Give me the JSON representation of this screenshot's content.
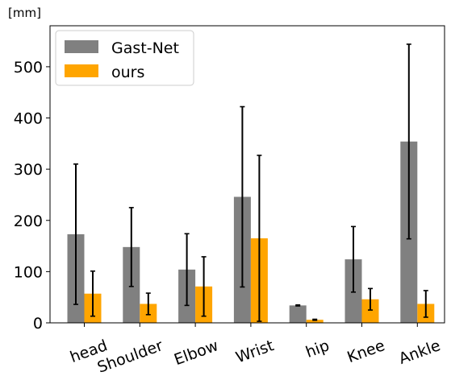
{
  "chart_data": {
    "type": "bar",
    "unit_label": "[mm]",
    "categories": [
      "head",
      "Shoulder",
      "Elbow",
      "Wrist",
      "hip",
      "Knee",
      "Ankle"
    ],
    "series": [
      {
        "name": "Gast-Net",
        "color": "#808080",
        "values": [
          173,
          148,
          104,
          246,
          34,
          124,
          354
        ],
        "error": [
          137,
          77,
          70,
          176,
          1,
          64,
          190
        ]
      },
      {
        "name": "ours",
        "color": "#ffa500",
        "values": [
          57,
          37,
          71,
          165,
          6,
          46,
          37
        ],
        "error": [
          44,
          21,
          58,
          162,
          1,
          21,
          26
        ]
      }
    ],
    "ylim": [
      0,
      580
    ],
    "yticks": [
      0,
      100,
      200,
      300,
      400,
      500
    ],
    "legend_position": "upper-left",
    "grid": false
  }
}
